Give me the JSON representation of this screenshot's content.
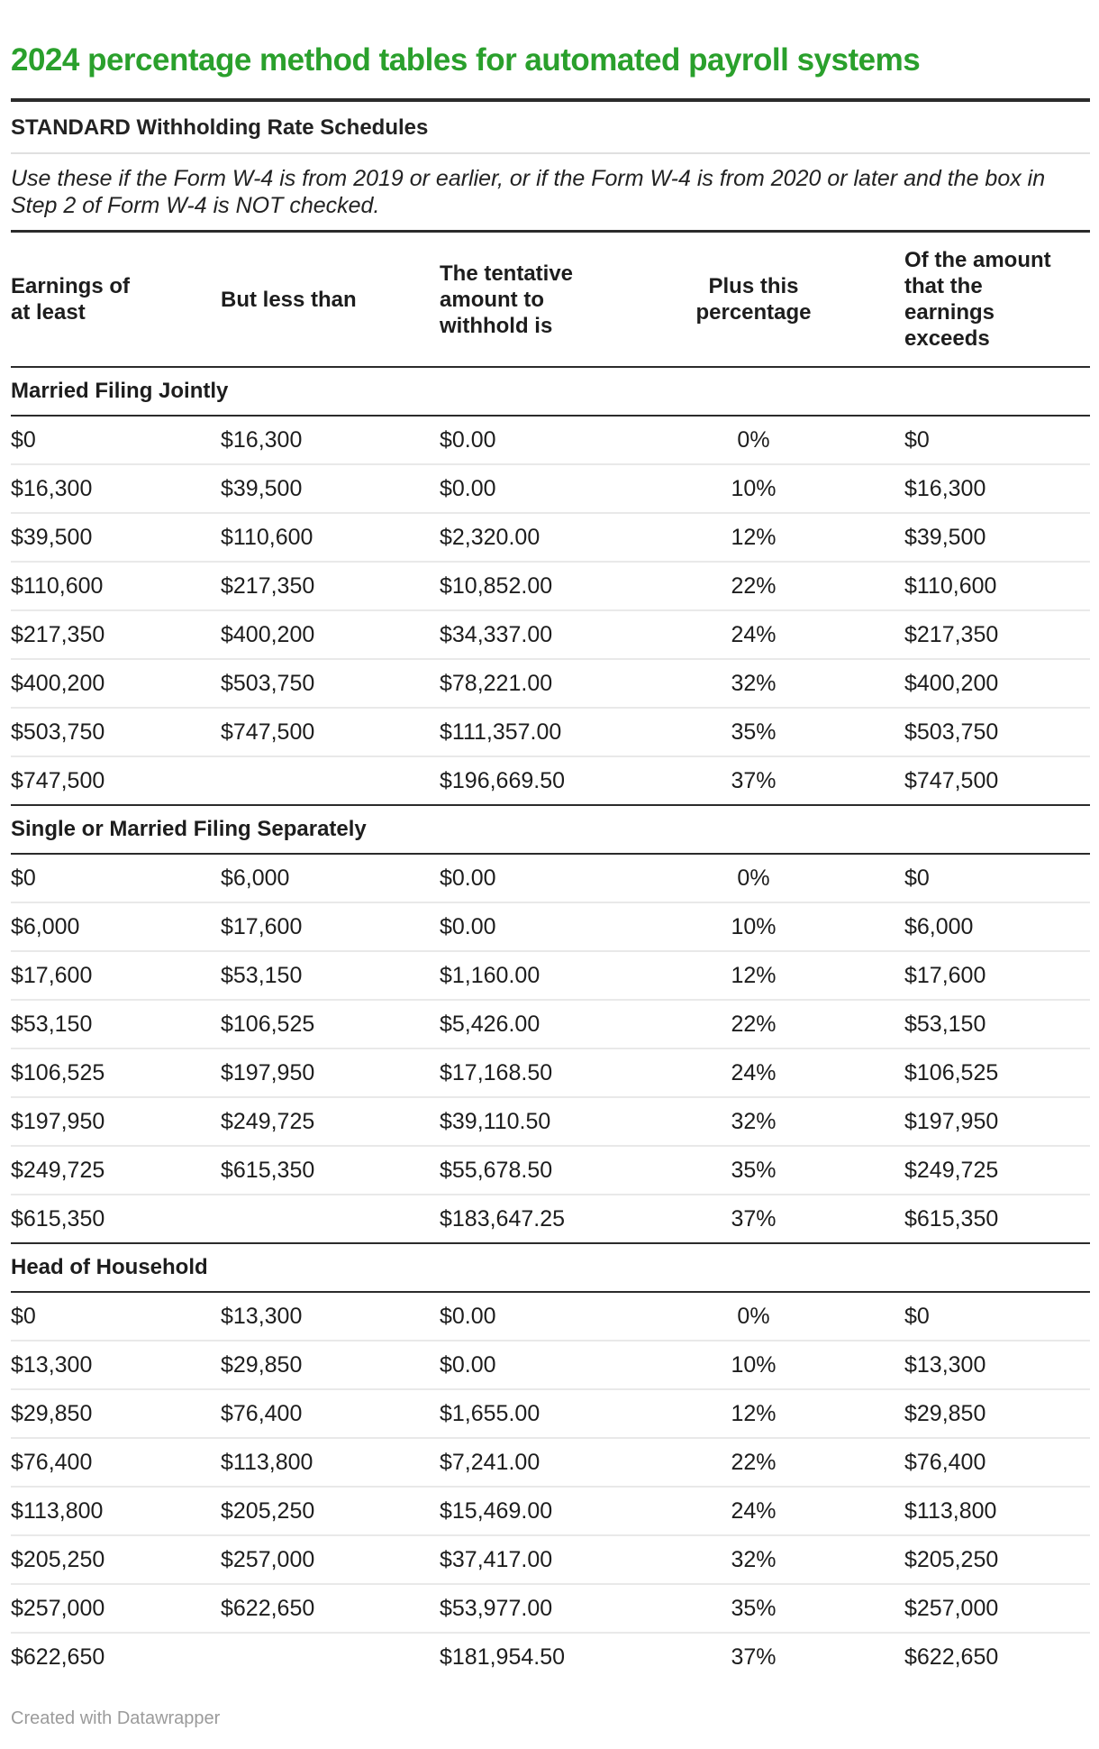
{
  "colors": {
    "title_green": "#2aa02c",
    "rule_dark": "#2b2b2b",
    "row_divider": "#e9e9e9",
    "light_rule": "#e0e0e0",
    "footer_gray": "#9b9b9b",
    "text": "#1d1d1d"
  },
  "chart_data": {
    "type": "table",
    "title": "2024 percentage method tables for automated payroll systems",
    "subtitle": "STANDARD Withholding Rate Schedules",
    "note": "Use these if the Form W-4 is from 2019 or earlier, or if the Form W-4 is from 2020 or later and the box in Step 2 of Form W-4 is NOT checked.",
    "columns": [
      "Earnings of\nat least",
      "But less than",
      "The tentative\namount to\nwithhold is",
      "Plus this\npercentage",
      "Of the amount\nthat the\nearnings\nexceeds"
    ],
    "column_alignments": [
      "left",
      "left",
      "left",
      "center",
      "left"
    ],
    "sections": [
      {
        "label": "Married Filing Jointly",
        "rows": [
          [
            "$0",
            "$16,300",
            "$0.00",
            "0%",
            "$0"
          ],
          [
            "$16,300",
            "$39,500",
            "$0.00",
            "10%",
            "$16,300"
          ],
          [
            "$39,500",
            "$110,600",
            "$2,320.00",
            "12%",
            "$39,500"
          ],
          [
            "$110,600",
            "$217,350",
            "$10,852.00",
            "22%",
            "$110,600"
          ],
          [
            "$217,350",
            "$400,200",
            "$34,337.00",
            "24%",
            "$217,350"
          ],
          [
            "$400,200",
            "$503,750",
            "$78,221.00",
            "32%",
            "$400,200"
          ],
          [
            "$503,750",
            "$747,500",
            "$111,357.00",
            "35%",
            "$503,750"
          ],
          [
            "$747,500",
            "",
            "$196,669.50",
            "37%",
            "$747,500"
          ]
        ]
      },
      {
        "label": "Single or Married Filing Separately",
        "rows": [
          [
            "$0",
            "$6,000",
            "$0.00",
            "0%",
            "$0"
          ],
          [
            "$6,000",
            "$17,600",
            "$0.00",
            "10%",
            "$6,000"
          ],
          [
            "$17,600",
            "$53,150",
            "$1,160.00",
            "12%",
            "$17,600"
          ],
          [
            "$53,150",
            "$106,525",
            "$5,426.00",
            "22%",
            "$53,150"
          ],
          [
            "$106,525",
            "$197,950",
            "$17,168.50",
            "24%",
            "$106,525"
          ],
          [
            "$197,950",
            "$249,725",
            "$39,110.50",
            "32%",
            "$197,950"
          ],
          [
            "$249,725",
            "$615,350",
            "$55,678.50",
            "35%",
            "$249,725"
          ],
          [
            "$615,350",
            "",
            "$183,647.25",
            "37%",
            "$615,350"
          ]
        ]
      },
      {
        "label": "Head of Household",
        "rows": [
          [
            "$0",
            "$13,300",
            "$0.00",
            "0%",
            "$0"
          ],
          [
            "$13,300",
            "$29,850",
            "$0.00",
            "10%",
            "$13,300"
          ],
          [
            "$29,850",
            "$76,400",
            "$1,655.00",
            "12%",
            "$29,850"
          ],
          [
            "$76,400",
            "$113,800",
            "$7,241.00",
            "22%",
            "$76,400"
          ],
          [
            "$113,800",
            "$205,250",
            "$15,469.00",
            "24%",
            "$113,800"
          ],
          [
            "$205,250",
            "$257,000",
            "$37,417.00",
            "32%",
            "$205,250"
          ],
          [
            "$257,000",
            "$622,650",
            "$53,977.00",
            "35%",
            "$257,000"
          ],
          [
            "$622,650",
            "",
            "$181,954.50",
            "37%",
            "$622,650"
          ]
        ]
      }
    ],
    "credit": "Created with Datawrapper"
  }
}
